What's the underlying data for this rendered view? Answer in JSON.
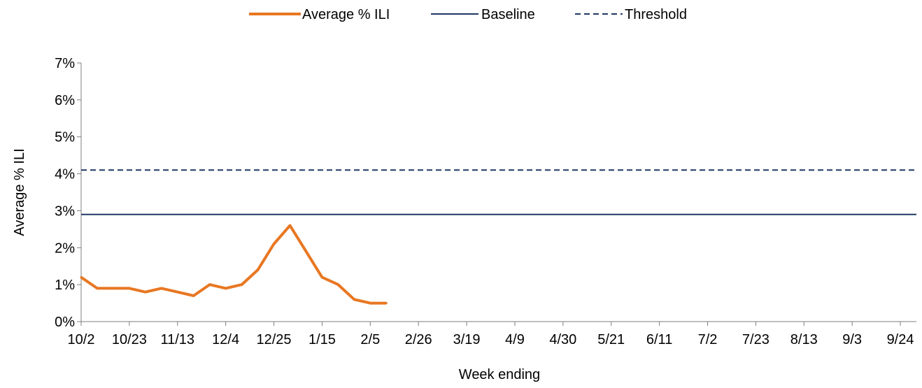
{
  "chart_data": {
    "type": "line",
    "title": "",
    "xlabel": "Week ending",
    "ylabel": "Average % ILI",
    "ylim": [
      0,
      7
    ],
    "y_ticks": [
      "0%",
      "1%",
      "2%",
      "3%",
      "4%",
      "5%",
      "6%",
      "7%"
    ],
    "x_tick_labels": [
      "10/2",
      "10/23",
      "11/13",
      "12/4",
      "12/25",
      "1/15",
      "2/5",
      "2/26",
      "3/19",
      "4/9",
      "4/30",
      "5/21",
      "6/11",
      "7/2",
      "7/23",
      "8/13",
      "9/3",
      "9/24"
    ],
    "legend": {
      "position": "top-center",
      "entries": [
        "Average % ILI",
        "Baseline",
        "Threshold"
      ]
    },
    "grid": false,
    "series": [
      {
        "name": "Average % ILI",
        "color": "#E87722",
        "style": "solid-thick",
        "x": [
          "10/2",
          "10/9",
          "10/16",
          "10/23",
          "10/30",
          "11/6",
          "11/13",
          "11/20",
          "11/27",
          "12/4",
          "12/11",
          "12/18",
          "12/25",
          "1/1",
          "1/8",
          "1/15",
          "1/22",
          "1/29",
          "2/5",
          "2/12"
        ],
        "values": [
          1.2,
          0.9,
          0.9,
          0.9,
          0.8,
          0.9,
          0.8,
          0.7,
          1.0,
          0.9,
          1.0,
          1.4,
          2.1,
          2.6,
          1.9,
          1.2,
          1.0,
          0.6,
          0.5,
          0.5
        ]
      },
      {
        "name": "Baseline",
        "color": "#1F3864",
        "style": "solid",
        "value": 2.9
      },
      {
        "name": "Threshold",
        "color": "#1F3864",
        "style": "dashed",
        "value": 4.1
      }
    ]
  }
}
